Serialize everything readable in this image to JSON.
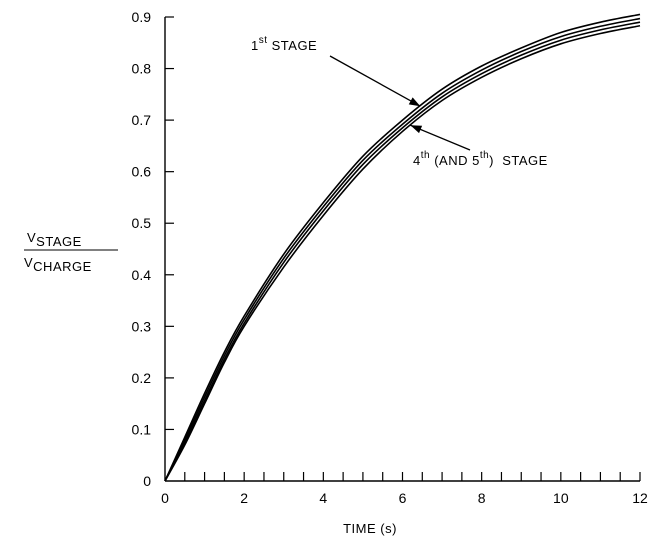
{
  "chart_data": {
    "type": "line",
    "xlabel": "TIME (s)",
    "ylabel": {
      "numerator": "V",
      "numerator_sub": "STAGE",
      "denominator": "V",
      "denominator_sub": "CHARGE"
    },
    "xlim": [
      0,
      12
    ],
    "ylim": [
      0,
      0.9
    ],
    "x_ticks": [
      "0",
      "2",
      "4",
      "6",
      "8",
      "10",
      "12"
    ],
    "x_minor_step": 0.5,
    "y_ticks": [
      "0",
      "0.1",
      "0.2",
      "0.3",
      "0.4",
      "0.5",
      "0.6",
      "0.7",
      "0.8",
      "0.9"
    ],
    "grid": false,
    "series": [
      {
        "name": "1st STAGE",
        "x": [
          0,
          0.5,
          1,
          1.5,
          2,
          3,
          4,
          5,
          6,
          7,
          8,
          9,
          10,
          11,
          12
        ],
        "y": [
          0,
          0.085,
          0.17,
          0.25,
          0.32,
          0.44,
          0.54,
          0.63,
          0.7,
          0.76,
          0.805,
          0.84,
          0.87,
          0.89,
          0.905
        ]
      },
      {
        "name": "",
        "x": [
          0,
          0.5,
          1,
          1.5,
          2,
          3,
          4,
          5,
          6,
          7,
          8,
          9,
          10,
          11,
          12
        ],
        "y": [
          0,
          0.08,
          0.163,
          0.243,
          0.313,
          0.432,
          0.532,
          0.622,
          0.692,
          0.752,
          0.797,
          0.833,
          0.862,
          0.882,
          0.897
        ]
      },
      {
        "name": "",
        "x": [
          0,
          0.5,
          1,
          1.5,
          2,
          3,
          4,
          5,
          6,
          7,
          8,
          9,
          10,
          11,
          12
        ],
        "y": [
          0,
          0.075,
          0.156,
          0.236,
          0.306,
          0.424,
          0.524,
          0.614,
          0.685,
          0.745,
          0.79,
          0.826,
          0.855,
          0.875,
          0.89
        ]
      },
      {
        "name": "4th (AND 5th) STAGE",
        "x": [
          0,
          0.5,
          1,
          1.5,
          2,
          3,
          4,
          5,
          6,
          7,
          8,
          9,
          10,
          11,
          12
        ],
        "y": [
          0,
          0.07,
          0.15,
          0.23,
          0.3,
          0.415,
          0.515,
          0.605,
          0.678,
          0.738,
          0.783,
          0.819,
          0.848,
          0.868,
          0.883
        ]
      }
    ],
    "annotations": [
      {
        "base": "1",
        "sup": "st",
        "rest": " STAGE",
        "series_index": 0,
        "target_x": 6.45
      },
      {
        "base": "4",
        "sup": "th",
        "rest": " (AND 5",
        "sup2": "th",
        "rest2": ")  STAGE",
        "series_index": 3,
        "target_x": 6.2
      }
    ]
  }
}
